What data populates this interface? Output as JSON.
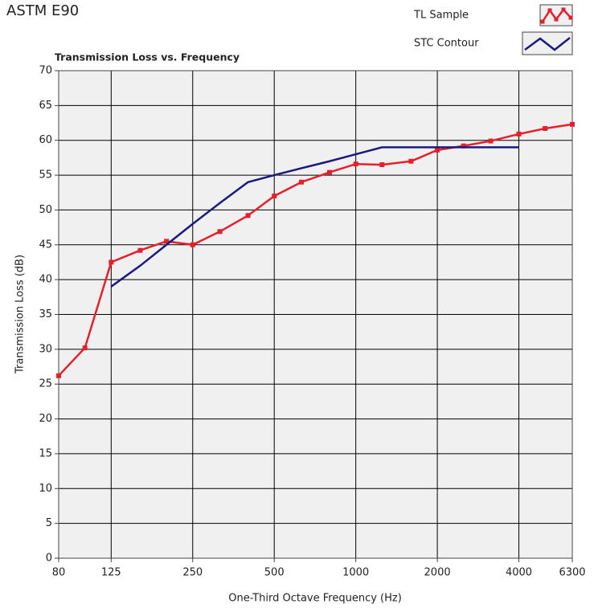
{
  "chart_data": {
    "type": "line",
    "page_title": "ASTM E90",
    "title": "Transmission Loss vs. Frequency",
    "xlabel": "One-Third Octave Frequency (Hz)",
    "ylabel": "Transmission Loss (dB)",
    "xscale": "log",
    "xlim": [
      80,
      6300
    ],
    "xticks": [
      80,
      125,
      250,
      500,
      1000,
      2000,
      4000,
      6300
    ],
    "ylim": [
      0,
      70
    ],
    "yticks": [
      0,
      5,
      10,
      15,
      20,
      25,
      30,
      35,
      40,
      45,
      50,
      55,
      60,
      65,
      70
    ],
    "grid": true,
    "legend": "top-right",
    "series": [
      {
        "name": "TL Sample",
        "color": "#e3202b",
        "marker": "square",
        "x": [
          80,
          100,
          125,
          160,
          200,
          250,
          315,
          400,
          500,
          630,
          800,
          1000,
          1250,
          1600,
          2000,
          2500,
          3150,
          4000,
          5000,
          6300
        ],
        "values": [
          26.2,
          30.2,
          42.5,
          44.2,
          45.5,
          45.0,
          46.9,
          49.2,
          52.0,
          54.0,
          55.4,
          56.6,
          56.5,
          57.0,
          58.6,
          59.2,
          59.9,
          60.9,
          61.7,
          62.3
        ]
      },
      {
        "name": "STC Contour",
        "color": "#1c1a7e",
        "x": [
          125,
          160,
          200,
          250,
          315,
          400,
          500,
          630,
          800,
          1000,
          1250,
          1600,
          2000,
          2500,
          3150,
          4000
        ],
        "values": [
          39,
          42,
          45,
          48,
          51,
          54,
          55,
          56,
          57,
          58,
          59,
          59,
          59,
          59,
          59,
          59
        ]
      }
    ]
  }
}
